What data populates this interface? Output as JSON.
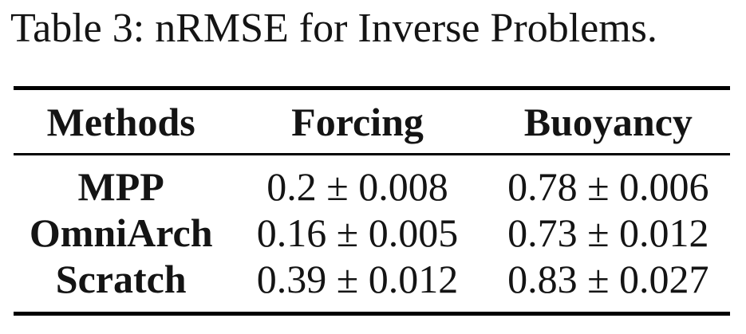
{
  "title": "Table 3: nRMSE for Inverse Problems.",
  "table": {
    "columns": [
      "Methods",
      "Forcing",
      "Buoyancy"
    ],
    "rows": [
      {
        "method": "MPP",
        "forcing": "0.2 ± 0.008",
        "buoyancy": "0.78 ± 0.006"
      },
      {
        "method": "OmniArch",
        "forcing": "0.16 ± 0.005",
        "buoyancy": "0.73 ± 0.012"
      },
      {
        "method": "Scratch",
        "forcing": "0.39 ± 0.012",
        "buoyancy": "0.83 ± 0.027"
      }
    ]
  },
  "colors": {
    "text": "#141414",
    "rule": "#000000",
    "background": "#ffffff"
  }
}
